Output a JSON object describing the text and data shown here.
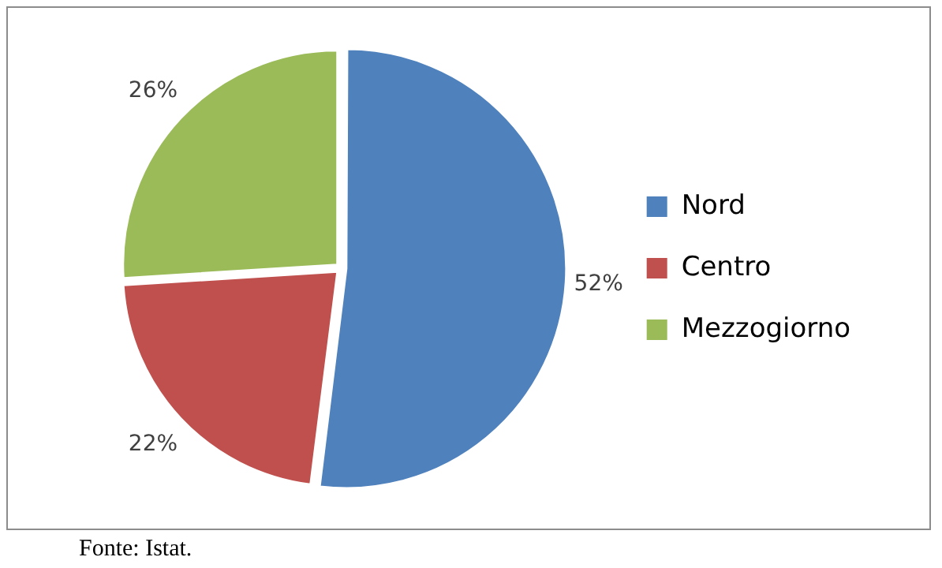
{
  "chart_data": {
    "type": "pie",
    "categories": [
      "Nord",
      "Centro",
      "Mezzogiorno"
    ],
    "values": [
      52,
      22,
      26
    ],
    "colors": [
      "#4f81bd",
      "#c0504d",
      "#9bbb59"
    ],
    "value_labels": [
      "52%",
      "22%",
      "26%"
    ],
    "legend": "right",
    "annotations": [
      "Fonte: Istat."
    ]
  }
}
